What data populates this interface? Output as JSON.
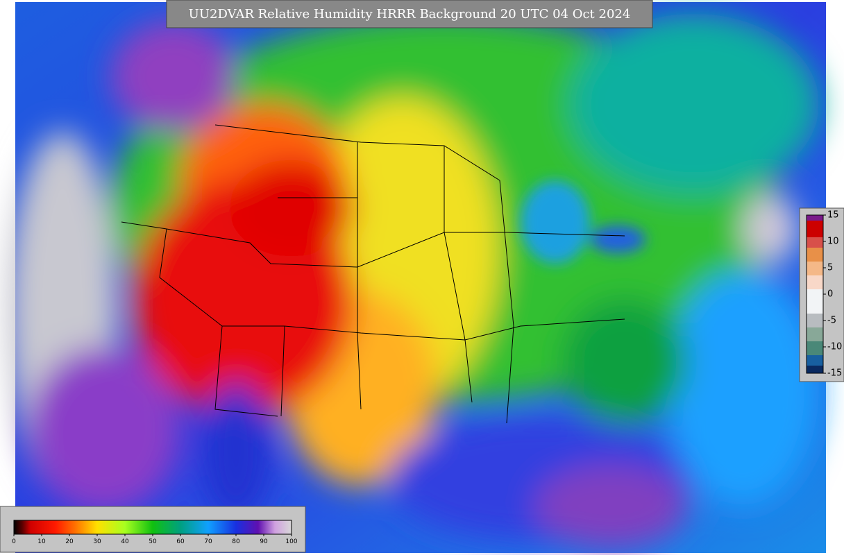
{
  "title": "UU2DVAR Relative Humidity HRRR Background  20 UTC 04 Oct 2024",
  "colorbar_bottom": {
    "ticks": [
      0,
      10,
      20,
      30,
      40,
      50,
      60,
      70,
      80,
      90,
      100
    ]
  },
  "colorbar_right": {
    "ticks": [
      15,
      10,
      5,
      0,
      -5,
      -10,
      -15
    ]
  }
}
